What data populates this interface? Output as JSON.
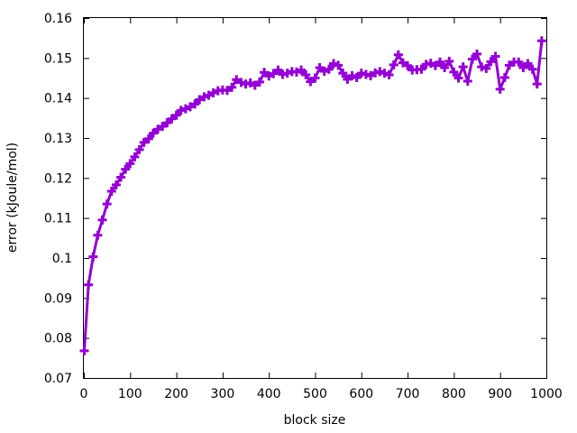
{
  "chart_data": {
    "type": "line",
    "title": "",
    "xlabel": "block size",
    "ylabel": "error (kJoule/mol)",
    "xlim": [
      0,
      1000
    ],
    "ylim": [
      0.07,
      0.16
    ],
    "xticks": [
      0,
      100,
      200,
      300,
      400,
      500,
      600,
      700,
      800,
      900,
      1000
    ],
    "yticks": [
      0.07,
      0.08,
      0.09,
      0.1,
      0.11,
      0.12,
      0.13,
      0.14,
      0.15,
      0.16
    ],
    "xtick_labels": [
      "0",
      "100",
      "200",
      "300",
      "400",
      "500",
      "600",
      "700",
      "800",
      "900",
      "1000"
    ],
    "ytick_labels": [
      "0.07",
      "0.08",
      "0.09",
      "0.1",
      "0.11",
      "0.12",
      "0.13",
      "0.14",
      "0.15",
      "0.16"
    ],
    "grid": false,
    "legend": "none",
    "series": [
      {
        "color": "#9400d3",
        "marker": "plus",
        "x": [
          1,
          10,
          20,
          30,
          40,
          50,
          60,
          70,
          80,
          90,
          100,
          110,
          120,
          130,
          140,
          150,
          160,
          170,
          180,
          190,
          200,
          210,
          220,
          230,
          240,
          250,
          260,
          270,
          280,
          290,
          300,
          310,
          320,
          330,
          340,
          350,
          360,
          370,
          380,
          390,
          400,
          410,
          420,
          430,
          440,
          450,
          460,
          470,
          480,
          490,
          500,
          510,
          520,
          530,
          540,
          550,
          560,
          570,
          580,
          590,
          600,
          610,
          620,
          630,
          640,
          650,
          660,
          670,
          680,
          690,
          700,
          710,
          720,
          730,
          740,
          750,
          760,
          770,
          780,
          790,
          800,
          810,
          820,
          830,
          840,
          850,
          860,
          870,
          880,
          890,
          900,
          910,
          920,
          930,
          940,
          950,
          960,
          970,
          980,
          990
        ],
        "y": [
          0.0768,
          0.0933,
          0.1003,
          0.1057,
          0.1095,
          0.1135,
          0.1167,
          0.1183,
          0.1202,
          0.1222,
          0.1236,
          0.1253,
          0.1271,
          0.1289,
          0.1298,
          0.1312,
          0.1322,
          0.1329,
          0.1338,
          0.1348,
          0.1357,
          0.1369,
          0.1373,
          0.1378,
          0.1385,
          0.1396,
          0.1403,
          0.1407,
          0.1413,
          0.1418,
          0.142,
          0.1419,
          0.1427,
          0.1446,
          0.1439,
          0.1435,
          0.1438,
          0.1432,
          0.144,
          0.1464,
          0.1455,
          0.1461,
          0.147,
          0.1459,
          0.1462,
          0.1466,
          0.1465,
          0.147,
          0.1458,
          0.1441,
          0.145,
          0.1476,
          0.1467,
          0.1472,
          0.1486,
          0.1482,
          0.1462,
          0.1447,
          0.1456,
          0.1451,
          0.1462,
          0.1459,
          0.1456,
          0.1463,
          0.1466,
          0.1462,
          0.1458,
          0.1483,
          0.1508,
          0.1488,
          0.1481,
          0.147,
          0.1471,
          0.1472,
          0.1484,
          0.1487,
          0.1481,
          0.149,
          0.1476,
          0.1492,
          0.1465,
          0.145,
          0.1478,
          0.1442,
          0.1497,
          0.151,
          0.1478,
          0.1474,
          0.1491,
          0.1504,
          0.1422,
          0.1451,
          0.1482,
          0.149,
          0.149,
          0.1476,
          0.1486,
          0.1472,
          0.1435,
          0.1543
        ]
      }
    ]
  }
}
